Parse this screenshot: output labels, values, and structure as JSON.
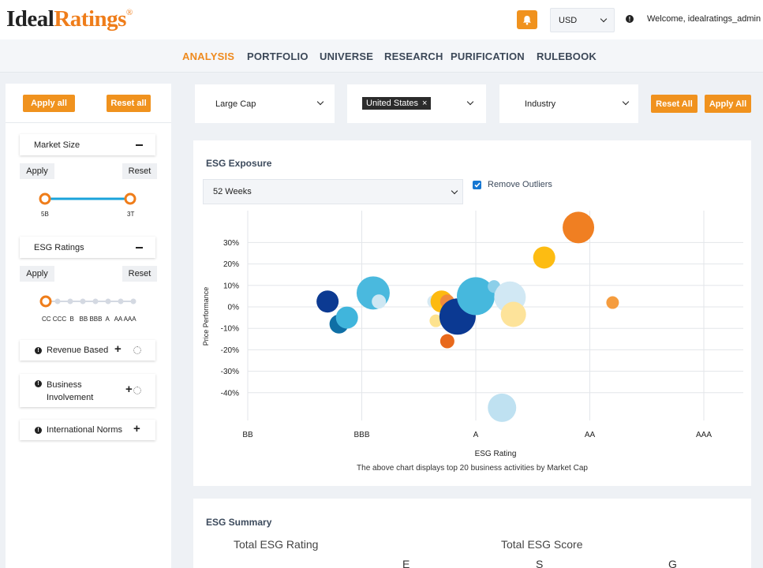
{
  "header": {
    "logo_part1": "Ideal",
    "logo_part2": "Ratings",
    "logo_mark": "®",
    "currency": "USD",
    "welcome": "Welcome, idealratings_admin"
  },
  "nav": {
    "analysis": "ANALYSIS",
    "portfolio": "PORTFOLIO",
    "universe": "UNIVERSE",
    "research": "RESEARCH",
    "purification": "PURIFICATION",
    "rulebook": "RULEBOOK"
  },
  "sidebar": {
    "apply_all": "Apply all",
    "reset_all": "Reset all",
    "market_size": {
      "label": "Market Size",
      "apply": "Apply",
      "reset": "Reset",
      "min": "5B",
      "max": "3T"
    },
    "esg_ratings": {
      "label": "ESG Ratings",
      "apply": "Apply",
      "reset": "Reset",
      "scale": "CC CCC  B   BB BBB  A   AA AAA"
    },
    "revenue_based": "Revenue Based",
    "business_involvement": "Business Involvement",
    "international_norms": "International Norms"
  },
  "filters": {
    "cap": "Large Cap",
    "country_tag": "United States",
    "tag_remove": "×",
    "industry": "Industry",
    "reset_all": "Reset All",
    "apply_all": "Apply All"
  },
  "exposure": {
    "title": "ESG Exposure",
    "period": "52 Weeks",
    "remove_outliers": "Remove Outliers",
    "caption": "The above chart displays top 20 business activities by Market Cap"
  },
  "chart_data": {
    "type": "scatter",
    "xlabel": "ESG Rating",
    "ylabel": "Price Performance",
    "x_categories": [
      "BB",
      "BBB",
      "A",
      "AA",
      "AAA"
    ],
    "y_ticks": [
      30,
      20,
      10,
      0,
      -10,
      -20,
      -30,
      -40
    ],
    "y_tick_labels": [
      "30%",
      "20%",
      "10%",
      "0%",
      "-10%",
      "-20%",
      "-30%",
      "-40%"
    ],
    "ylim": [
      -50,
      45
    ],
    "grid": true,
    "points": [
      {
        "x": 2.9,
        "y": 37,
        "size": 20,
        "color": "#f07f22"
      },
      {
        "x": 2.6,
        "y": 23,
        "size": 14,
        "color": "#fdbc12"
      },
      {
        "x": 3.2,
        "y": 2,
        "size": 8,
        "color": "#f59c3e"
      },
      {
        "x": 0.7,
        "y": 2.5,
        "size": 14,
        "color": "#0c3a92"
      },
      {
        "x": 0.8,
        "y": -8,
        "size": 12,
        "color": "#0f6fa5"
      },
      {
        "x": 0.87,
        "y": -5,
        "size": 14,
        "color": "#40b5dc"
      },
      {
        "x": 1.1,
        "y": 6.5,
        "size": 21,
        "color": "#4ab9de"
      },
      {
        "x": 1.15,
        "y": 2.5,
        "size": 9,
        "color": "#cde7f3"
      },
      {
        "x": 1.63,
        "y": 2.5,
        "size": 8,
        "color": "#d6e9f2"
      },
      {
        "x": 1.65,
        "y": -6.5,
        "size": 8,
        "color": "#fde28e"
      },
      {
        "x": 1.7,
        "y": 2.5,
        "size": 14,
        "color": "#fdba10"
      },
      {
        "x": 1.75,
        "y": 2.5,
        "size": 9,
        "color": "#f08a3c"
      },
      {
        "x": 1.75,
        "y": -16,
        "size": 9,
        "color": "#e8691c"
      },
      {
        "x": 1.84,
        "y": -4.5,
        "size": 23,
        "color": "#0b3992"
      },
      {
        "x": 1.92,
        "y": 1.5,
        "size": 9,
        "color": "#2aa0d3"
      },
      {
        "x": 2.0,
        "y": 5,
        "size": 24,
        "color": "#46b8dd"
      },
      {
        "x": 2.16,
        "y": 9.5,
        "size": 8,
        "color": "#8ccfe9"
      },
      {
        "x": 2.3,
        "y": 4.5,
        "size": 20,
        "color": "#d1e8f4"
      },
      {
        "x": 2.33,
        "y": -3.5,
        "size": 16,
        "color": "#fde39a"
      },
      {
        "x": 2.23,
        "y": -47,
        "size": 18,
        "color": "#bfe1f1"
      }
    ]
  },
  "summary": {
    "title": "ESG Summary",
    "total_rating": "Total ESG Rating",
    "total_score": "Total ESG Score",
    "col_e": "E",
    "col_s": "S",
    "col_g": "G"
  }
}
